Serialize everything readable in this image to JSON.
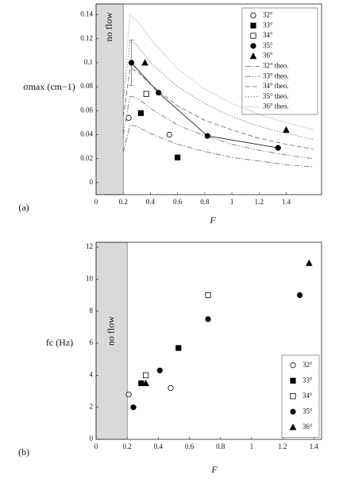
{
  "chart_data": [
    {
      "type": "scatter",
      "panel_label": "(a)",
      "xlabel": "F",
      "ylabel": "σmax (cm−1)",
      "annotation": "no flow",
      "shade": [
        0,
        0.2
      ],
      "xlim": [
        0,
        1.66
      ],
      "ylim": [
        -0.01,
        0.149
      ],
      "xticks": [
        0,
        0.2,
        0.4,
        0.6,
        0.8,
        1,
        1.2,
        1.4
      ],
      "yticks": [
        0,
        0.02,
        0.04,
        0.06,
        0.08,
        0.1,
        0.12,
        0.14
      ],
      "legend": "upper right",
      "series": [
        {
          "name": "32°",
          "color": "#000000",
          "marker": "circle-open",
          "x": [
            0.24,
            0.54
          ],
          "values": [
            0.054,
            0.04
          ]
        },
        {
          "name": "33°",
          "color": "#000000",
          "marker": "square-filled",
          "x": [
            0.33,
            0.6
          ],
          "values": [
            0.058,
            0.021
          ]
        },
        {
          "name": "34°",
          "color": "#000000",
          "marker": "square-open",
          "x": [
            0.37
          ],
          "values": [
            0.074
          ]
        },
        {
          "name": "35°",
          "color": "#000000",
          "marker": "circle-filled",
          "line": "solid",
          "x": [
            0.26,
            0.46,
            0.82,
            1.34
          ],
          "values": [
            0.1,
            0.075,
            0.039,
            0.029
          ],
          "errors": [
            0.019,
            null,
            null,
            null
          ]
        },
        {
          "name": "36°",
          "color": "#000000",
          "marker": "triangle-filled",
          "x": [
            0.36,
            1.4
          ],
          "values": [
            0.1,
            0.044
          ]
        },
        {
          "name": "32° theo.",
          "color": "#666666",
          "line": "dashdot",
          "x": [
            0.2,
            0.25,
            0.3,
            0.4,
            0.6,
            0.8,
            1.0,
            1.2,
            1.4,
            1.6
          ],
          "values": [
            0.025,
            0.048,
            0.047,
            0.041,
            0.032,
            0.026,
            0.021,
            0.018,
            0.015,
            0.013
          ]
        },
        {
          "name": "33° theo.",
          "color": "#666666",
          "line": "dashdotdot",
          "x": [
            0.2,
            0.25,
            0.3,
            0.4,
            0.6,
            0.8,
            1.0,
            1.2,
            1.4,
            1.6
          ],
          "values": [
            0.04,
            0.072,
            0.071,
            0.062,
            0.048,
            0.039,
            0.032,
            0.027,
            0.023,
            0.02
          ]
        },
        {
          "name": "34° theo.",
          "color": "#666666",
          "line": "dashed",
          "x": [
            0.2,
            0.25,
            0.3,
            0.4,
            0.6,
            0.8,
            1.0,
            1.2,
            1.4,
            1.6
          ],
          "values": [
            0.055,
            0.095,
            0.093,
            0.082,
            0.064,
            0.052,
            0.044,
            0.037,
            0.032,
            0.028
          ]
        },
        {
          "name": "35° theo.",
          "color": "#666666",
          "line": "dotted",
          "x": [
            0.2,
            0.25,
            0.3,
            0.4,
            0.6,
            0.8,
            1.0,
            1.2,
            1.4,
            1.6
          ],
          "values": [
            0.07,
            0.118,
            0.115,
            0.1,
            0.08,
            0.066,
            0.055,
            0.047,
            0.041,
            0.036
          ]
        },
        {
          "name": "36° theo.",
          "color": "#888888",
          "line": "finedot",
          "x": [
            0.2,
            0.25,
            0.3,
            0.4,
            0.6,
            0.8,
            1.0,
            1.2,
            1.4,
            1.6
          ],
          "values": [
            0.08,
            0.14,
            0.135,
            0.12,
            0.095,
            0.078,
            0.066,
            0.057,
            0.05,
            0.044
          ]
        }
      ]
    },
    {
      "type": "scatter",
      "panel_label": "(b)",
      "xlabel": "F",
      "ylabel": "fc (Hz)",
      "annotation": "no flow",
      "shade": [
        0,
        0.2
      ],
      "xlim": [
        0,
        1.45
      ],
      "ylim": [
        0,
        12.3
      ],
      "xticks": [
        0,
        0.2,
        0.4,
        0.6,
        0.8,
        1,
        1.2,
        1.4
      ],
      "yticks": [
        0,
        2,
        4,
        6,
        8,
        10,
        12
      ],
      "legend": "lower right",
      "series": [
        {
          "name": "32°",
          "color": "#000000",
          "marker": "circle-open",
          "x": [
            0.21,
            0.48
          ],
          "values": [
            2.8,
            3.2
          ]
        },
        {
          "name": "33°",
          "color": "#000000",
          "marker": "square-filled",
          "x": [
            0.29,
            0.53
          ],
          "values": [
            3.5,
            5.7
          ]
        },
        {
          "name": "34°",
          "color": "#000000",
          "marker": "square-open",
          "x": [
            0.32,
            0.72
          ],
          "values": [
            4.0,
            9.0
          ]
        },
        {
          "name": "35°",
          "color": "#000000",
          "marker": "circle-filled",
          "x": [
            0.24,
            0.41,
            0.72,
            1.31
          ],
          "values": [
            2.0,
            4.3,
            7.5,
            9.0
          ]
        },
        {
          "name": "36°",
          "color": "#000000",
          "marker": "triangle-filled",
          "x": [
            0.32,
            1.37
          ],
          "values": [
            3.5,
            11.0
          ]
        }
      ]
    }
  ]
}
